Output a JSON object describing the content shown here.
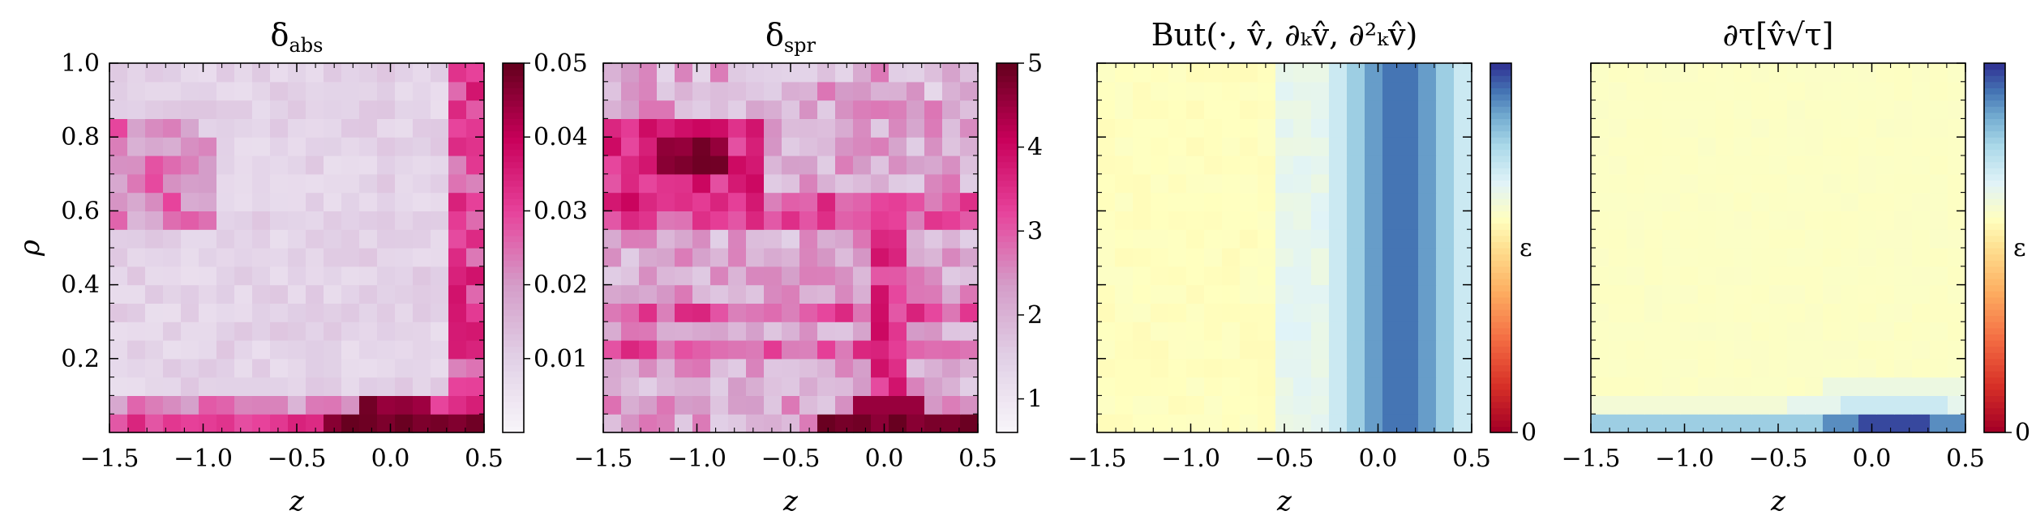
{
  "chart_data": [
    {
      "type": "heatmap",
      "title_main": "δ",
      "title_sub": "abs",
      "xlabel": "z",
      "ylabel": "ρ",
      "xlim": [
        -1.5,
        0.5
      ],
      "ylim": [
        0.0,
        1.0
      ],
      "xticks": [
        "−1.5",
        "−1.0",
        "−0.5",
        "0.0",
        "0.5"
      ],
      "yticks": [
        "0.2",
        "0.4",
        "0.6",
        "0.8",
        "1.0"
      ],
      "colormap": "white-to-crimson",
      "colorbar": {
        "range": [
          0.0,
          0.05
        ],
        "ticks": [
          "0.01",
          "0.02",
          "0.03",
          "0.04",
          "0.05"
        ],
        "label": ""
      },
      "grid_shape": [
        20,
        21
      ],
      "description": "values mostly near 0.002; high band at bottom rows near z in [-0.4, 0.5]; moderate vertical band near z=0.4; pinkish region at z≈-1.4 for ρ 0.6–0.8"
    },
    {
      "type": "heatmap",
      "title_main": "δ",
      "title_sub": "spr",
      "xlabel": "z",
      "ylabel": "",
      "xlim": [
        -1.5,
        0.5
      ],
      "ylim": [
        0.0,
        1.0
      ],
      "xticks": [
        "−1.5",
        "−1.0",
        "−0.5",
        "0.0",
        "0.5"
      ],
      "yticks": [],
      "colormap": "white-to-crimson",
      "colorbar": {
        "range": [
          0.6,
          5.0
        ],
        "ticks": [
          "1",
          "2",
          "3",
          "4",
          "5"
        ],
        "label": ""
      },
      "grid_shape": [
        20,
        21
      ],
      "description": "high region around z≈-1.0 for ρ 0.65–0.8; strong band at bottom rows near z in [-0.4, 0.2]; many mid-level horizontal streaks"
    },
    {
      "type": "heatmap",
      "title_main": "But(·, v̂, ∂ₖv̂, ∂²ₖv̂)",
      "title_sub": "",
      "xlabel": "z",
      "ylabel": "",
      "xlim": [
        -1.5,
        0.5
      ],
      "ylim": [
        0.0,
        1.0
      ],
      "xticks": [
        "−1.5",
        "−1.0",
        "−0.5",
        "0.0",
        "0.5"
      ],
      "yticks": [],
      "colormap": "red-yellow-blue",
      "colorbar": {
        "range": [
          0,
          1
        ],
        "ticks": [
          "0"
        ],
        "label": "ε"
      },
      "grid_shape": [
        20,
        21
      ],
      "description": "mostly pale yellow; vertical blue band centered at z≈0.1 with dark core"
    },
    {
      "type": "heatmap",
      "title_main": "∂τ[v̂√τ]",
      "title_sub": "",
      "xlabel": "z",
      "ylabel": "",
      "xlim": [
        -1.5,
        0.5
      ],
      "ylim": [
        0.0,
        1.0
      ],
      "xticks": [
        "−1.5",
        "−1.0",
        "−0.5",
        "0.0",
        "0.5"
      ],
      "yticks": [],
      "colormap": "red-yellow-blue",
      "colorbar": {
        "range": [
          0,
          1
        ],
        "ticks": [
          "0"
        ],
        "label": "ε"
      },
      "grid_shape": [
        20,
        21
      ],
      "description": "mostly pale yellow; blue band at the lowest rows, darkest near z≈0.1"
    }
  ]
}
